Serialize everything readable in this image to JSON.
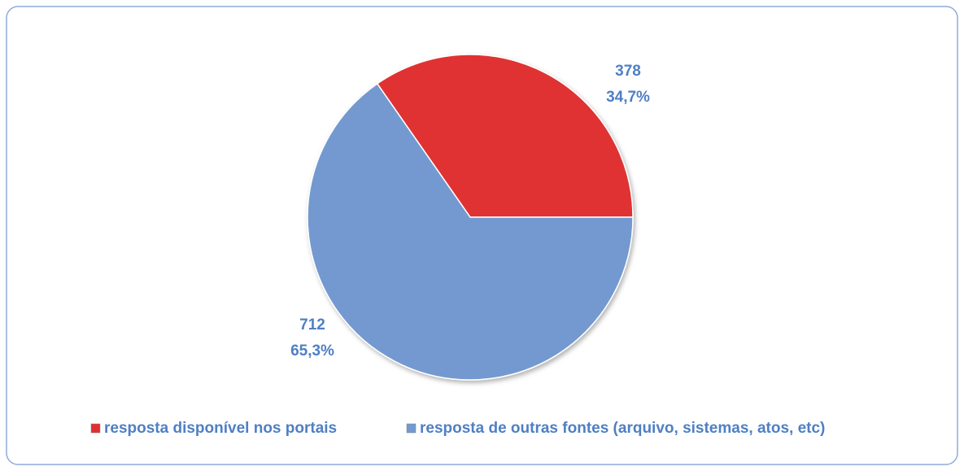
{
  "chart_data": {
    "type": "pie",
    "categories": [
      "resposta disponível nos portais",
      "resposta de outras fontes (arquivo, sistemas, atos, etc)"
    ],
    "values": [
      378,
      712
    ],
    "percentages": [
      34.7,
      65.3
    ],
    "percentage_labels": [
      "34,7%",
      "65,3%"
    ],
    "colors": [
      "#e03030",
      "#7399d0"
    ],
    "legend": "bottom"
  }
}
